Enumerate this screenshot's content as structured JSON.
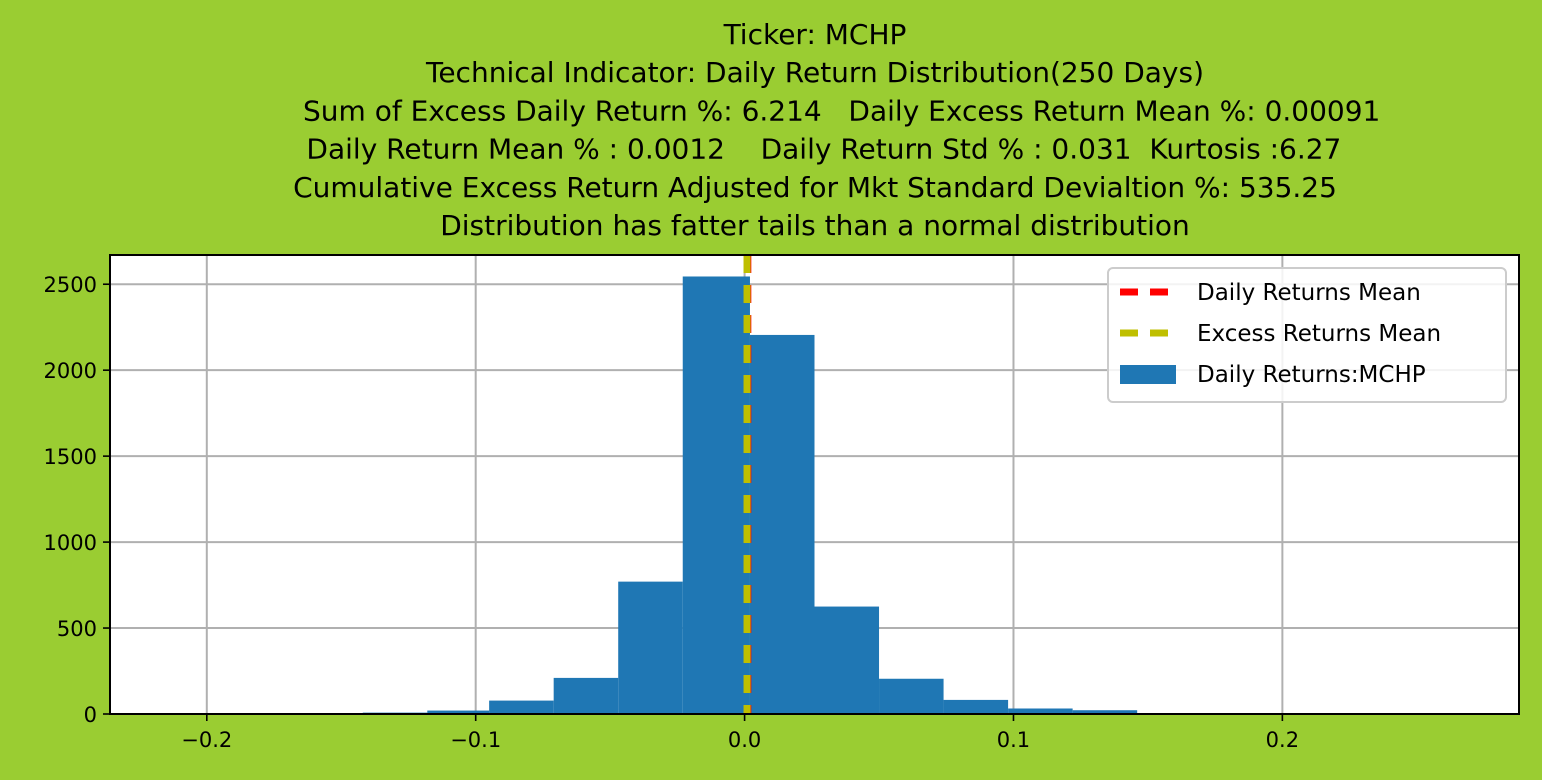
{
  "chart_data": {
    "type": "bar",
    "title_lines": [
      "Ticker: MCHP",
      "Technical Indicator: Daily Return Distribution(250 Days)",
      "      Sum of Excess Daily Return %: 6.214   Daily Excess Return Mean %: 0.00091",
      "  Daily Return Mean % : 0.0012    Daily Return Std % : 0.031  Kurtosis :6.27",
      "Cumulative Excess Return Adjusted for Mkt Standard Devialtion %: 535.25",
      "Distribution has fatter tails than a normal distribution"
    ],
    "xlabel": "",
    "ylabel": "",
    "xlim": [
      -0.236,
      0.288
    ],
    "ylim": [
      0,
      2670
    ],
    "xticks": [
      -0.2,
      -0.1,
      0.0,
      0.1,
      0.2
    ],
    "xtick_labels": [
      "−0.2",
      "−0.1",
      "0.0",
      "0.1",
      "0.2"
    ],
    "yticks": [
      0,
      500,
      1000,
      1500,
      2000,
      2500
    ],
    "ytick_labels": [
      "0",
      "500",
      "1000",
      "1500",
      "2000",
      "2500"
    ],
    "grid": true,
    "legend_position": "upper right",
    "bins": [
      {
        "x0": -0.214,
        "x1": -0.19,
        "value": 0
      },
      {
        "x0": -0.19,
        "x1": -0.166,
        "value": 0
      },
      {
        "x0": -0.166,
        "x1": -0.142,
        "value": 2
      },
      {
        "x0": -0.142,
        "x1": -0.118,
        "value": 8
      },
      {
        "x0": -0.118,
        "x1": -0.095,
        "value": 20
      },
      {
        "x0": -0.095,
        "x1": -0.071,
        "value": 78
      },
      {
        "x0": -0.071,
        "x1": -0.047,
        "value": 210
      },
      {
        "x0": -0.047,
        "x1": -0.023,
        "value": 770
      },
      {
        "x0": -0.023,
        "x1": 0.002,
        "value": 2545
      },
      {
        "x0": 0.002,
        "x1": 0.026,
        "value": 2205
      },
      {
        "x0": 0.026,
        "x1": 0.05,
        "value": 625
      },
      {
        "x0": 0.05,
        "x1": 0.074,
        "value": 205
      },
      {
        "x0": 0.074,
        "x1": 0.098,
        "value": 82
      },
      {
        "x0": 0.098,
        "x1": 0.122,
        "value": 32
      },
      {
        "x0": 0.122,
        "x1": 0.146,
        "value": 22
      },
      {
        "x0": 0.146,
        "x1": 0.17,
        "value": 4
      },
      {
        "x0": 0.17,
        "x1": 0.194,
        "value": 2
      },
      {
        "x0": 0.194,
        "x1": 0.218,
        "value": 1
      },
      {
        "x0": 0.218,
        "x1": 0.242,
        "value": 0
      },
      {
        "x0": 0.242,
        "x1": 0.266,
        "value": 1
      }
    ],
    "vlines": [
      {
        "name": "Daily Returns Mean",
        "x": 0.0012,
        "color": "#ff0000"
      },
      {
        "name": "Excess Returns Mean",
        "x": 0.00091,
        "color": "#bfbf00"
      }
    ],
    "histogram_series": {
      "name": "Daily Returns:MCHP",
      "color": "#1f77b4"
    },
    "background_color": "#9acd32",
    "axes_background": "#ffffff"
  }
}
